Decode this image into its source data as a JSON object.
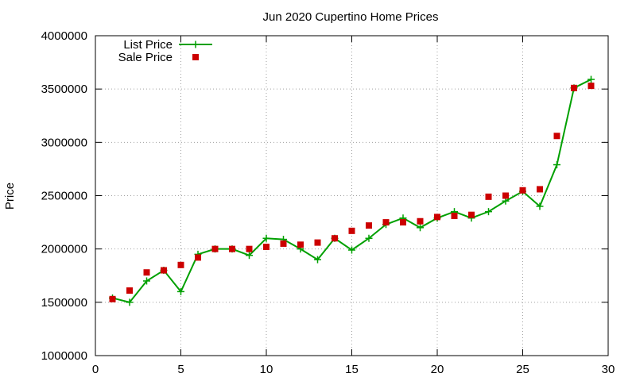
{
  "chart_data": {
    "type": "line",
    "title": "Jun 2020 Cupertino Home Prices",
    "xlabel": "",
    "ylabel": "Price",
    "xlim": [
      0,
      30
    ],
    "ylim": [
      1000000,
      4000000
    ],
    "xticks": [
      0,
      5,
      10,
      15,
      20,
      25,
      30
    ],
    "yticks": [
      1000000,
      1500000,
      2000000,
      2500000,
      3000000,
      3500000,
      4000000
    ],
    "grid": true,
    "legend_position": "top-left",
    "series": [
      {
        "name": "List Price",
        "style": "line-with-plus-markers",
        "color": "#00a000",
        "x": [
          1,
          2,
          3,
          4,
          5,
          6,
          7,
          8,
          9,
          10,
          11,
          12,
          13,
          14,
          15,
          16,
          17,
          18,
          19,
          20,
          21,
          22,
          23,
          24,
          25,
          26,
          27,
          28,
          29
        ],
        "values": [
          1540000,
          1500000,
          1700000,
          1800000,
          1600000,
          1950000,
          2000000,
          2000000,
          1940000,
          2100000,
          2090000,
          2000000,
          1900000,
          2100000,
          1990000,
          2100000,
          2230000,
          2290000,
          2200000,
          2290000,
          2350000,
          2290000,
          2350000,
          2450000,
          2540000,
          2400000,
          2790000,
          3510000,
          3590000
        ]
      },
      {
        "name": "Sale Price",
        "style": "square-markers",
        "color": "#cc0000",
        "x": [
          1,
          2,
          3,
          4,
          5,
          6,
          7,
          8,
          9,
          10,
          11,
          12,
          13,
          14,
          15,
          16,
          17,
          18,
          19,
          20,
          21,
          22,
          23,
          24,
          25,
          26,
          27,
          28,
          29
        ],
        "values": [
          1530000,
          1610000,
          1780000,
          1800000,
          1850000,
          1920000,
          2000000,
          2000000,
          2000000,
          2020000,
          2050000,
          2040000,
          2060000,
          2100000,
          2170000,
          2220000,
          2250000,
          2250000,
          2260000,
          2300000,
          2310000,
          2320000,
          2490000,
          2500000,
          2550000,
          2560000,
          3060000,
          3510000,
          3530000
        ]
      }
    ]
  }
}
